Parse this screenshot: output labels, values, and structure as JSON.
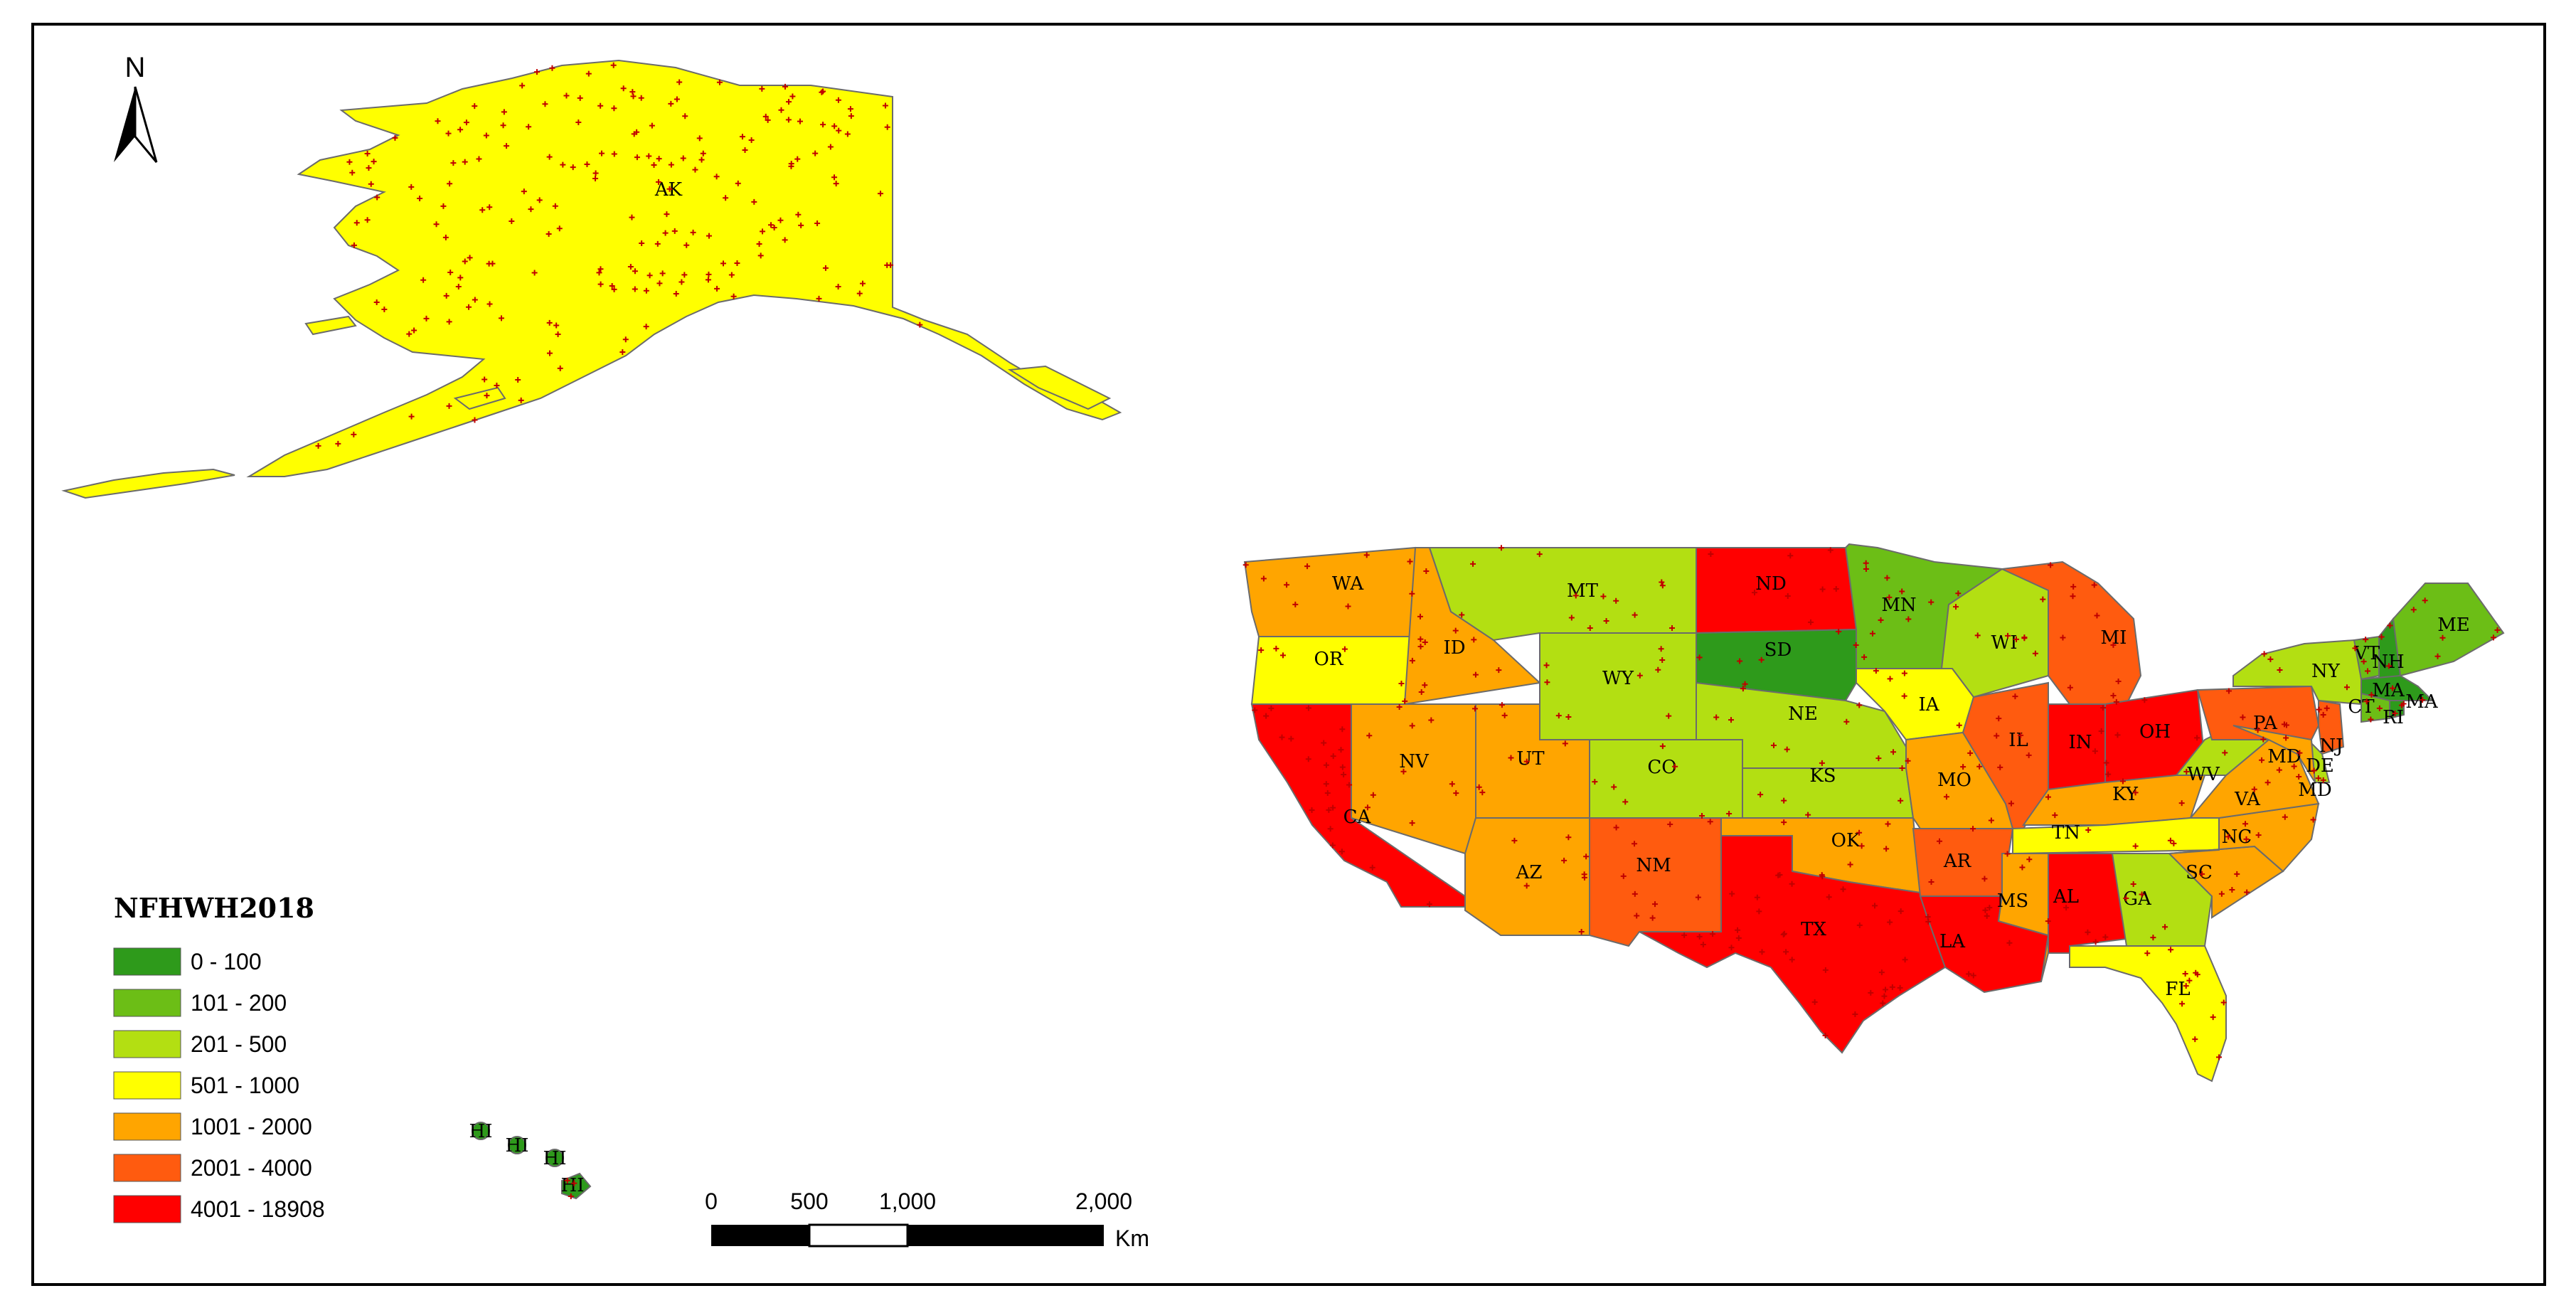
{
  "north_arrow": {
    "label": "N"
  },
  "legend": {
    "title": "NFHWH2018",
    "items": [
      {
        "label": "0 - 100",
        "color": "#2e9a1b"
      },
      {
        "label": "101 - 200",
        "color": "#6cbe16"
      },
      {
        "label": "201 - 500",
        "color": "#b3df12"
      },
      {
        "label": "501 - 1000",
        "color": "#ffff00"
      },
      {
        "label": "1001 - 2000",
        "color": "#ffa500"
      },
      {
        "label": "2001 - 4000",
        "color": "#ff5b0f"
      },
      {
        "label": "4001 - 18908",
        "color": "#ff0000"
      }
    ]
  },
  "scale_bar": {
    "ticks": [
      "0",
      "500",
      "1,000",
      "2,000"
    ],
    "unit": "Km"
  },
  "states": [
    {
      "abbr": "AK",
      "class": "501 - 1000"
    },
    {
      "abbr": "HI",
      "class": "0 - 100"
    },
    {
      "abbr": "WA",
      "class": "1001 - 2000"
    },
    {
      "abbr": "OR",
      "class": "501 - 1000"
    },
    {
      "abbr": "CA",
      "class": "4001 - 18908"
    },
    {
      "abbr": "ID",
      "class": "1001 - 2000"
    },
    {
      "abbr": "NV",
      "class": "1001 - 2000"
    },
    {
      "abbr": "UT",
      "class": "1001 - 2000"
    },
    {
      "abbr": "AZ",
      "class": "1001 - 2000"
    },
    {
      "abbr": "MT",
      "class": "201 - 500"
    },
    {
      "abbr": "WY",
      "class": "201 - 500"
    },
    {
      "abbr": "CO",
      "class": "201 - 500"
    },
    {
      "abbr": "NM",
      "class": "2001 - 4000"
    },
    {
      "abbr": "ND",
      "class": "4001 - 18908"
    },
    {
      "abbr": "SD",
      "class": "0 - 100"
    },
    {
      "abbr": "NE",
      "class": "201 - 500"
    },
    {
      "abbr": "KS",
      "class": "201 - 500"
    },
    {
      "abbr": "OK",
      "class": "1001 - 2000"
    },
    {
      "abbr": "TX",
      "class": "4001 - 18908"
    },
    {
      "abbr": "MN",
      "class": "101 - 200"
    },
    {
      "abbr": "IA",
      "class": "501 - 1000"
    },
    {
      "abbr": "MO",
      "class": "1001 - 2000"
    },
    {
      "abbr": "AR",
      "class": "2001 - 4000"
    },
    {
      "abbr": "LA",
      "class": "4001 - 18908"
    },
    {
      "abbr": "WI",
      "class": "201 - 500"
    },
    {
      "abbr": "IL",
      "class": "2001 - 4000"
    },
    {
      "abbr": "MI",
      "class": "2001 - 4000"
    },
    {
      "abbr": "IN",
      "class": "4001 - 18908"
    },
    {
      "abbr": "OH",
      "class": "4001 - 18908"
    },
    {
      "abbr": "KY",
      "class": "1001 - 2000"
    },
    {
      "abbr": "TN",
      "class": "501 - 1000"
    },
    {
      "abbr": "MS",
      "class": "1001 - 2000"
    },
    {
      "abbr": "AL",
      "class": "4001 - 18908"
    },
    {
      "abbr": "GA",
      "class": "201 - 500"
    },
    {
      "abbr": "FL",
      "class": "501 - 1000"
    },
    {
      "abbr": "SC",
      "class": "1001 - 2000"
    },
    {
      "abbr": "NC",
      "class": "1001 - 2000"
    },
    {
      "abbr": "VA",
      "class": "1001 - 2000"
    },
    {
      "abbr": "WV",
      "class": "201 - 500"
    },
    {
      "abbr": "PA",
      "class": "2001 - 4000"
    },
    {
      "abbr": "NY",
      "class": "201 - 500"
    },
    {
      "abbr": "VT",
      "class": "101 - 200"
    },
    {
      "abbr": "NH",
      "class": "0 - 100"
    },
    {
      "abbr": "ME",
      "class": "101 - 200"
    },
    {
      "abbr": "MA",
      "class": "0 - 100"
    },
    {
      "abbr": "CT",
      "class": "101 - 200"
    },
    {
      "abbr": "RI",
      "class": "0 - 100"
    },
    {
      "abbr": "NJ",
      "class": "2001 - 4000"
    },
    {
      "abbr": "DE",
      "class": "201 - 500"
    },
    {
      "abbr": "MD",
      "class": "1001 - 2000"
    }
  ]
}
